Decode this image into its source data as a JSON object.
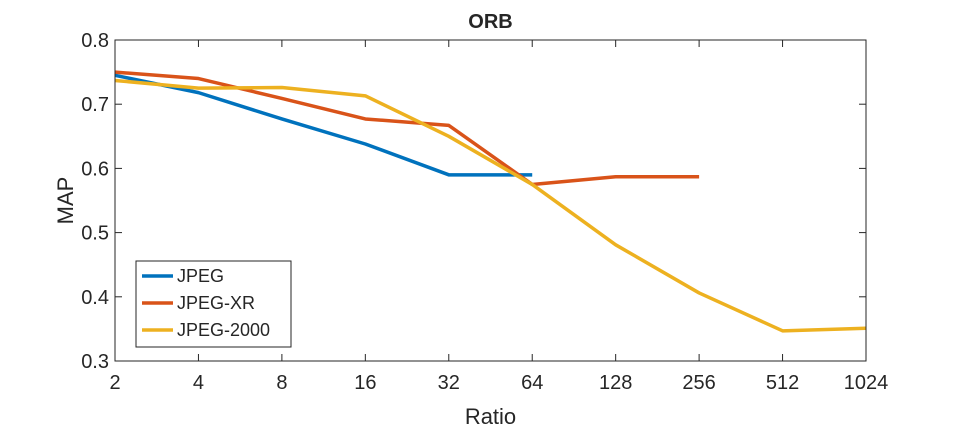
{
  "chart_data": {
    "type": "line",
    "title": "ORB",
    "xlabel": "Ratio",
    "ylabel": "MAP",
    "x_scale": "log2",
    "x_ticks": [
      2,
      4,
      8,
      16,
      32,
      64,
      128,
      256,
      512,
      1024
    ],
    "x_tick_labels": [
      "2",
      "4",
      "8",
      "16",
      "32",
      "64",
      "128",
      "256",
      "512",
      "1024"
    ],
    "xlim": [
      2,
      1024
    ],
    "y_ticks": [
      0.3,
      0.4,
      0.5,
      0.6,
      0.7,
      0.8
    ],
    "y_tick_labels": [
      "0.3",
      "0.4",
      "0.5",
      "0.6",
      "0.7",
      "0.8"
    ],
    "ylim": [
      0.3,
      0.8
    ],
    "grid": false,
    "legend_position": "bottom-left",
    "series": [
      {
        "name": "JPEG",
        "color": "#0072BD",
        "x": [
          2,
          4,
          8,
          16,
          32,
          64
        ],
        "y": [
          0.745,
          0.718,
          0.677,
          0.638,
          0.59,
          0.59
        ]
      },
      {
        "name": "JPEG-XR",
        "color": "#D95319",
        "x": [
          2,
          4,
          8,
          16,
          32,
          64,
          128,
          256
        ],
        "y": [
          0.75,
          0.74,
          0.709,
          0.677,
          0.667,
          0.575,
          0.587,
          0.587
        ]
      },
      {
        "name": "JPEG-2000",
        "color": "#EDB120",
        "x": [
          2,
          4,
          8,
          16,
          32,
          64,
          128,
          256,
          512,
          1024
        ],
        "y": [
          0.737,
          0.725,
          0.726,
          0.713,
          0.65,
          0.575,
          0.481,
          0.406,
          0.347,
          0.351
        ]
      }
    ]
  }
}
